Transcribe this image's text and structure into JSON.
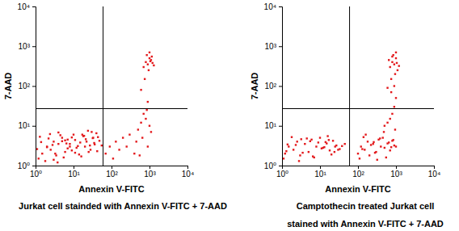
{
  "chart_data": [
    {
      "type": "scatter",
      "title": [
        "Jurkat cell stainded with Annexin V-FITC + 7-AAD"
      ],
      "xlabel": "Annexin V-FITC",
      "ylabel": "7-AAD",
      "color": "#e3191c",
      "log": true,
      "xlim": [
        1,
        10000
      ],
      "ylim": [
        1,
        10000
      ],
      "xticks": [
        {
          "value": 1,
          "label": "10⁰"
        },
        {
          "value": 10,
          "label": "10¹"
        },
        {
          "value": 100,
          "label": "10²"
        },
        {
          "value": 1000,
          "label": "10³"
        },
        {
          "value": 10000,
          "label": "10⁴"
        }
      ],
      "yticks": [
        {
          "value": 1,
          "label": "10⁰"
        },
        {
          "value": 10,
          "label": "10¹"
        },
        {
          "value": 100,
          "label": "10²"
        },
        {
          "value": 1000,
          "label": "10³"
        },
        {
          "value": 10000,
          "label": "10⁴"
        }
      ],
      "gates": {
        "x": 60,
        "y": 27
      },
      "x": [
        1.2,
        1.5,
        2,
        2.5,
        3,
        3.5,
        4,
        5,
        6,
        7,
        8,
        10,
        12,
        15,
        18,
        22,
        27,
        33,
        40,
        48,
        1.1,
        1.8,
        2.2,
        2.8,
        3.3,
        4.5,
        5.5,
        6.5,
        9,
        11,
        14,
        17,
        20,
        25,
        30,
        36,
        44,
        1.4,
        2.4,
        3.8,
        5,
        7,
        9,
        13,
        16,
        21,
        28,
        35,
        1.3,
        2,
        3,
        4,
        6,
        8,
        11,
        19,
        24,
        32,
        42,
        55,
        70,
        90,
        110,
        130,
        160,
        200,
        250,
        300,
        400,
        500,
        600,
        700,
        800,
        900,
        1000,
        650,
        450,
        850,
        1100,
        550,
        700,
        800,
        900,
        1000,
        1100,
        1200,
        850,
        950,
        1050,
        750,
        600,
        1300,
        1000,
        900,
        1150
      ],
      "y": [
        1.5,
        2,
        3,
        2.5,
        4,
        1.8,
        3.5,
        5,
        2.2,
        4.5,
        3,
        6,
        2.8,
        3.8,
        5.5,
        4,
        3.2,
        5,
        6.5,
        4.2,
        2.6,
        1.3,
        4.8,
        3.3,
        2,
        5.8,
        1.6,
        3.6,
        2.4,
        4.4,
        1.9,
        6,
        3,
        2.2,
        7,
        3.4,
        5.2,
        3.9,
        6.2,
        1.2,
        4.1,
        2.7,
        5.1,
        3.1,
        1.7,
        4.6,
        2.5,
        3.7,
        5.3,
        2.9,
        1.4,
        6.8,
        4.3,
        3.5,
        2.1,
        5.6,
        7.5,
        4.9,
        2.3,
        3.2,
        2,
        3,
        1.5,
        4,
        2.5,
        5,
        3,
        6,
        2,
        8,
        12,
        20,
        15,
        3,
        10,
        5,
        4,
        25,
        7,
        1.8,
        300,
        400,
        350,
        500,
        450,
        380,
        600,
        250,
        420,
        150,
        80,
        330,
        700,
        40,
        550
      ]
    },
    {
      "type": "scatter",
      "title": [
        "Camptothecin treated Jurkat cell",
        "stained with Annexin V-FITC + 7-AAD"
      ],
      "xlabel": "Annexin V-FITC",
      "ylabel": "7-AAD",
      "color": "#e3191c",
      "log": true,
      "xlim": [
        1,
        10000
      ],
      "ylim": [
        1,
        10000
      ],
      "xticks": [
        {
          "value": 1,
          "label": "10⁰"
        },
        {
          "value": 10,
          "label": "10¹"
        },
        {
          "value": 100,
          "label": "10²"
        },
        {
          "value": 1000,
          "label": "10³"
        },
        {
          "value": 10000,
          "label": "10⁴"
        }
      ],
      "yticks": [
        {
          "value": 1,
          "label": "10⁰"
        },
        {
          "value": 10,
          "label": "10¹"
        },
        {
          "value": 100,
          "label": "10²"
        },
        {
          "value": 1000,
          "label": "10³"
        },
        {
          "value": 10000,
          "label": "10⁴"
        }
      ],
      "gates": {
        "x": 60,
        "y": 27
      },
      "x": [
        1.2,
        1.5,
        2,
        2.5,
        3,
        4,
        5,
        6,
        8,
        10,
        12,
        15,
        18,
        22,
        27,
        33,
        1.1,
        1.8,
        2.3,
        3.5,
        4.5,
        7,
        9,
        13,
        17,
        20,
        25,
        30,
        1.4,
        2.8,
        5.5,
        11,
        16,
        38,
        1.3,
        3.2,
        6.5,
        14,
        24,
        45,
        100,
        120,
        150,
        180,
        200,
        250,
        300,
        350,
        400,
        450,
        500,
        600,
        700,
        800,
        900,
        110,
        140,
        220,
        280,
        380,
        550,
        650,
        750,
        850,
        160,
        320,
        480,
        1000,
        130,
        260,
        500,
        700,
        800,
        900,
        1000,
        600,
        750,
        950,
        700,
        800,
        900,
        1000,
        1100,
        650,
        850,
        950,
        1050,
        750,
        900,
        1000,
        800,
        1200,
        600
      ],
      "y": [
        2,
        3,
        2.5,
        4,
        1.8,
        3.5,
        2.2,
        4.5,
        3,
        5,
        2.8,
        3.6,
        2.4,
        4.2,
        3.2,
        2.6,
        1.5,
        5.2,
        3.3,
        2.1,
        4.8,
        1.6,
        3.8,
        2.9,
        4.4,
        1.9,
        3,
        2.5,
        3.4,
        1.3,
        4.1,
        2.7,
        5.5,
        3.1,
        2.3,
        4.6,
        1.7,
        3.9,
        2.2,
        3.5,
        2,
        3,
        2.5,
        4,
        1.8,
        3.5,
        2.2,
        4.5,
        3,
        5,
        2.8,
        3.6,
        2.4,
        4.2,
        3.2,
        1.5,
        5.2,
        3.3,
        2.1,
        4.8,
        1.6,
        3.8,
        2.9,
        4.4,
        6,
        1.4,
        7,
        3,
        2.6,
        3.9,
        10,
        15,
        20,
        30,
        50,
        12,
        70,
        8,
        300,
        400,
        350,
        500,
        250,
        450,
        600,
        200,
        380,
        150,
        100,
        700,
        550,
        320,
        90
      ]
    }
  ]
}
